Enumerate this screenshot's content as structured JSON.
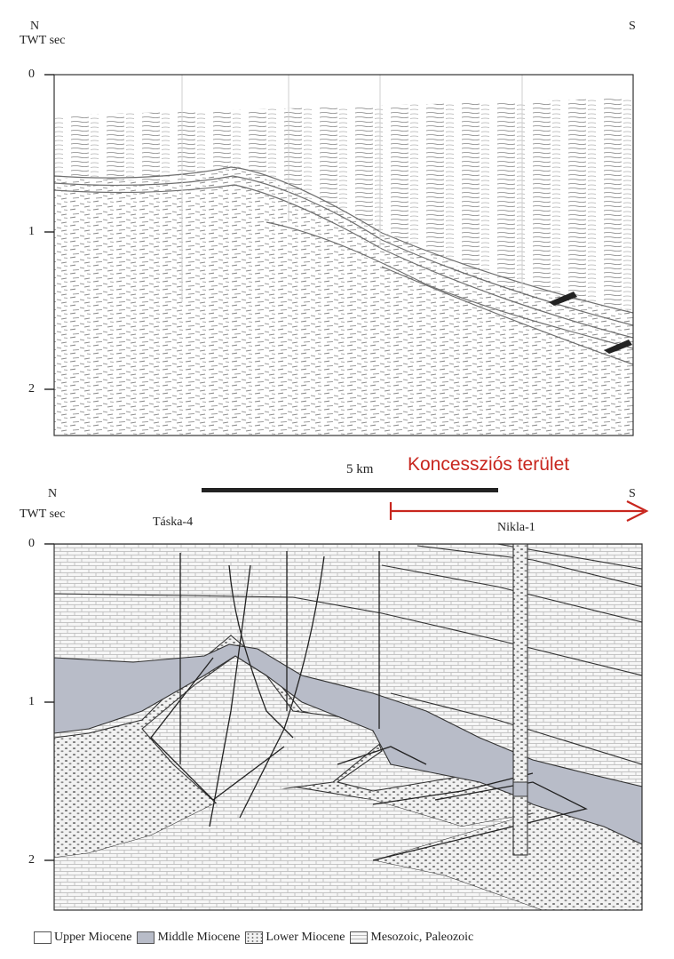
{
  "top_panel": {
    "north": "N",
    "south": "S",
    "axis_title": "TWT sec",
    "ticks": [
      "0",
      "1",
      "2"
    ]
  },
  "scale_bar": {
    "label": "5 km"
  },
  "concession": {
    "label": "Koncessziós terület",
    "color": "#c8261e"
  },
  "bottom_panel": {
    "north": "N",
    "south": "S",
    "axis_title": "TWT sec",
    "ticks": [
      "0",
      "1",
      "2"
    ],
    "wells": [
      "Táska-4",
      "Nikla-1"
    ]
  },
  "legend": [
    {
      "label": "Upper Miocene",
      "fill": "#ffffff"
    },
    {
      "label": "Middle Miocene",
      "fill": "#b8bcc8"
    },
    {
      "label": "Lower Miocene",
      "fill": "dots"
    },
    {
      "label": "Mesozoic, Paleozoic",
      "fill": "bricks"
    }
  ]
}
